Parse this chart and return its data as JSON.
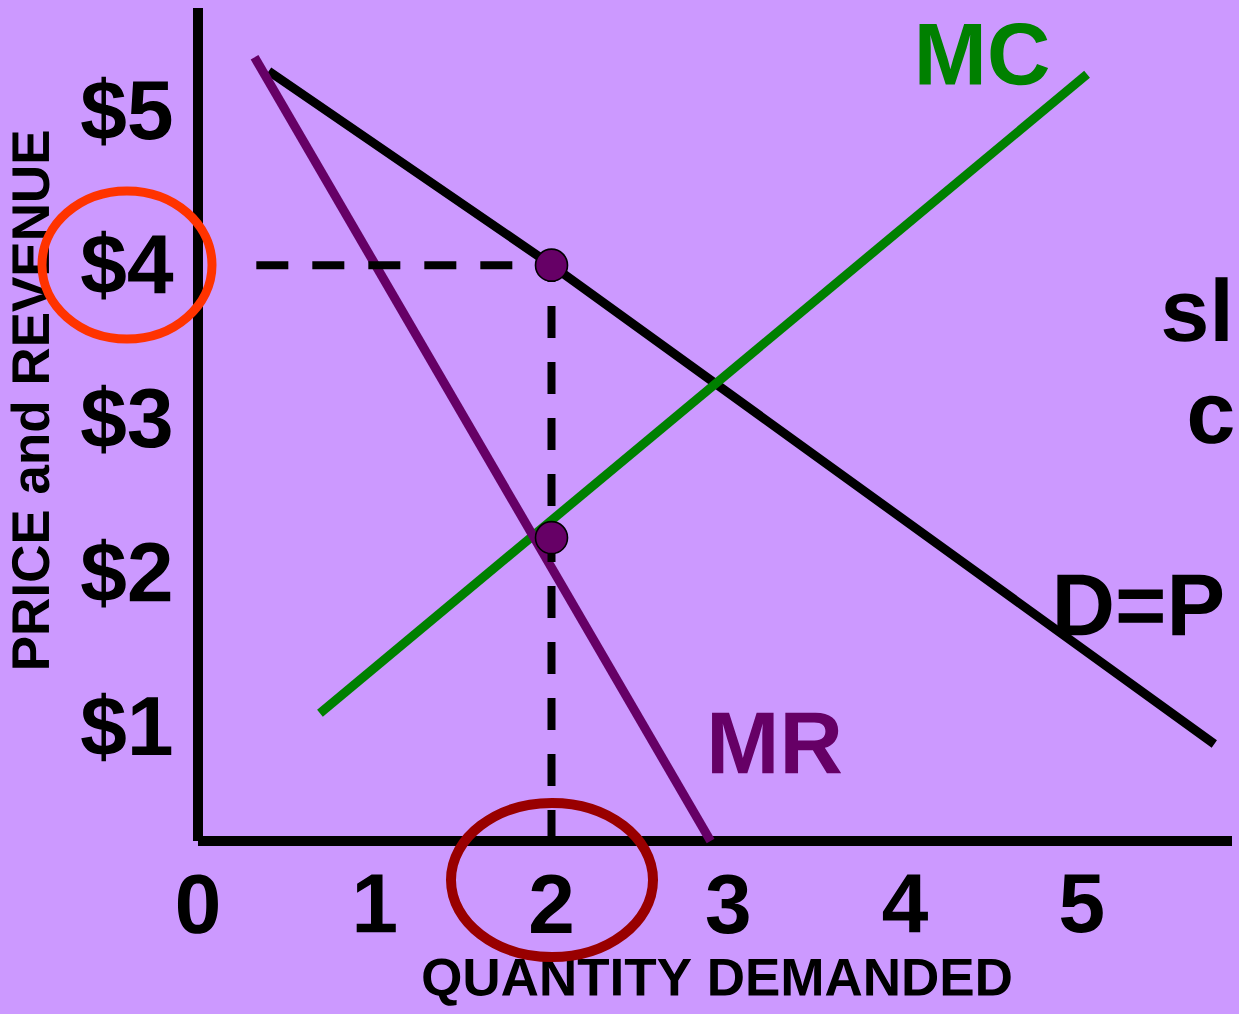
{
  "chart_data": {
    "type": "line",
    "xlabel": "QUANTITY DEMANDED",
    "ylabel": "PRICE and REVENUE",
    "xlim": [
      0,
      5.85
    ],
    "ylim": [
      0.26,
      5.67
    ],
    "xticks": [
      0,
      1,
      2,
      3,
      4,
      5
    ],
    "yticks": [
      {
        "value": 1,
        "label": "$1"
      },
      {
        "value": 2,
        "label": "$2"
      },
      {
        "value": 3,
        "label": "$3"
      },
      {
        "value": 4,
        "label": "$4"
      },
      {
        "value": 5,
        "label": "$5"
      }
    ],
    "series": [
      {
        "name": "D=P",
        "color": "#000000",
        "x": [
          0.4,
          2,
          5.75
        ],
        "values": [
          5.26,
          4,
          0.89
        ]
      },
      {
        "name": "MC",
        "color": "#008000",
        "x": [
          0.69,
          5.03
        ],
        "values": [
          1.09,
          5.24
        ]
      },
      {
        "name": "MR",
        "color": "#660066",
        "x": [
          0.32,
          2.9
        ],
        "values": [
          5.35,
          0.26
        ]
      },
      {
        "color": "#000000",
        "line_style": "dashed",
        "x": [
          0.33,
          2,
          2
        ],
        "values": [
          4,
          4,
          0.26
        ]
      },
      {
        "type": "scatter",
        "color": "#660066",
        "marker": "circle",
        "x": [
          2,
          2
        ],
        "values": [
          4,
          2.23
        ]
      }
    ],
    "annotations": [
      "sl",
      "c"
    ]
  }
}
